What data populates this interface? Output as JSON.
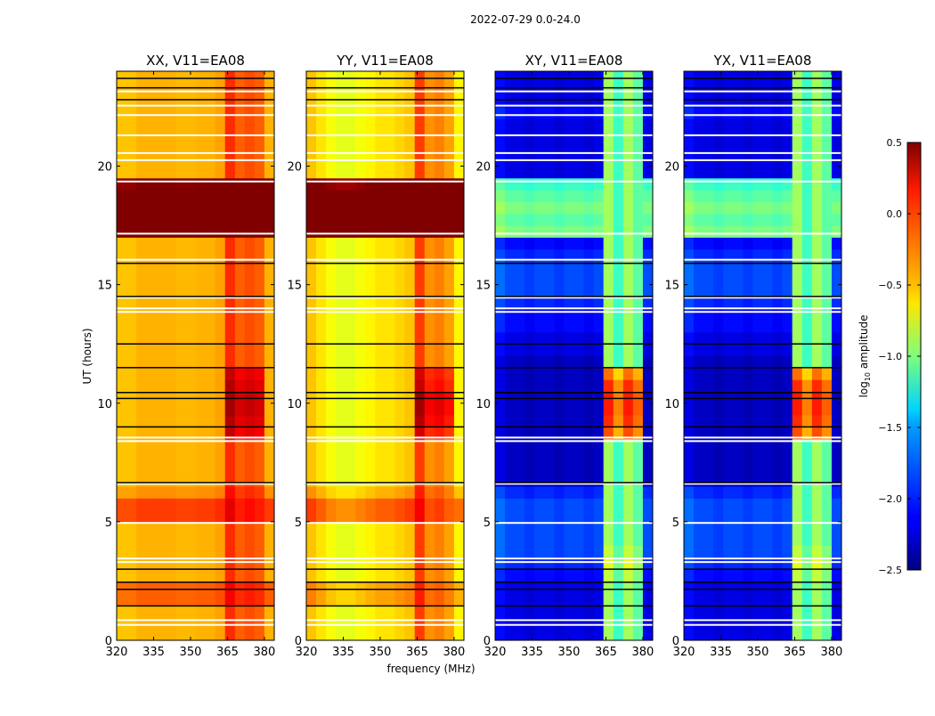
{
  "chart_data": {
    "type": "heatmap",
    "title": "2022-07-29 0.0-24.0",
    "xlabel": "frequency (MHz)",
    "ylabel": "UT (hours)",
    "xlim": [
      320,
      384
    ],
    "ylim": [
      0,
      24
    ],
    "x_ticks": [
      "320",
      "335",
      "350",
      "365",
      "380"
    ],
    "x_tick_values": [
      320,
      335,
      350,
      365,
      380
    ],
    "y_ticks": [
      "0",
      "5",
      "10",
      "15",
      "20"
    ],
    "y_tick_values": [
      0,
      5,
      10,
      15,
      20
    ],
    "freq_bin_edges_start": 320,
    "freq_bin_width_mhz": 4,
    "time_bin_width_hours": 0.5,
    "high_band_bins": [
      11,
      12,
      13,
      14
    ],
    "colorbar": {
      "label_main": "log",
      "label_sub": "10",
      "label_rest": " amplitude",
      "colormap": "jet",
      "range": [
        -2.5,
        0.5
      ],
      "ticks": [
        "0.5",
        "0.0",
        "−0.5",
        "−1.0",
        "−1.5",
        "−2.0",
        "−2.5"
      ],
      "tick_values": [
        0.5,
        0.0,
        -0.5,
        -1.0,
        -1.5,
        -2.0,
        -2.5
      ]
    },
    "flagged_hours_white": [
      0.65,
      0.85,
      3.3,
      3.45,
      4.95,
      6.6,
      8.4,
      8.55,
      13.85,
      14.0,
      14.45,
      16.05,
      17.15,
      19.35,
      20.25,
      20.55,
      21.3,
      22.15,
      22.55,
      23.15
    ],
    "flagged_hours_black": [
      1.45,
      2.15,
      2.45,
      3.0,
      6.65,
      9.0,
      10.2,
      10.45,
      11.5,
      12.5,
      14.5,
      15.9,
      22.8,
      23.3,
      23.7
    ],
    "panels": [
      {
        "title": "XX, V11=EA08",
        "freq_profile": [
          -0.45,
          -0.45,
          -0.4,
          -0.4,
          -0.4,
          -0.4,
          -0.42,
          -0.42,
          -0.4,
          -0.4,
          -0.35,
          0.0,
          -0.15,
          -0.1,
          -0.15,
          -0.4
        ],
        "time_profile_low": [
          0,
          0,
          0,
          0.25,
          0.25,
          0,
          0,
          0,
          0,
          0,
          0.35,
          0.35,
          0.1,
          0,
          0,
          0,
          0,
          0,
          0,
          0,
          0,
          0,
          0,
          0,
          0,
          0,
          0,
          0,
          0,
          0,
          0,
          0,
          0,
          0,
          1.0,
          1.0,
          1.0,
          1.0,
          0.9,
          0,
          0,
          0,
          0,
          0,
          0,
          0,
          0,
          0
        ],
        "time_profile_high": [
          0,
          0,
          0,
          0.15,
          0.15,
          0,
          0,
          0,
          0,
          0,
          0.2,
          0.2,
          0.1,
          0,
          0,
          0,
          0,
          0.3,
          0.35,
          0.4,
          0.4,
          0.35,
          0.3,
          0,
          0,
          0,
          0,
          0,
          0,
          0,
          0,
          0,
          0,
          0,
          1.0,
          1.0,
          1.0,
          1.0,
          0.9,
          0,
          0,
          0,
          0,
          0,
          0,
          0,
          0,
          0
        ]
      },
      {
        "title": "YY, V11=EA08",
        "freq_profile": [
          -0.45,
          -0.55,
          -0.65,
          -0.7,
          -0.7,
          -0.65,
          -0.6,
          -0.55,
          -0.55,
          -0.5,
          -0.45,
          -0.05,
          -0.3,
          -0.25,
          -0.35,
          -0.6
        ],
        "time_profile_low": [
          0,
          0,
          0,
          0.2,
          0.2,
          0,
          0,
          0,
          0,
          0,
          0.4,
          0.4,
          0.15,
          0,
          0,
          0,
          0,
          0,
          0,
          0,
          0,
          0,
          0,
          0,
          0,
          0,
          0,
          0,
          0,
          0,
          0,
          0,
          0,
          0,
          1.2,
          1.2,
          1.2,
          1.2,
          1.1,
          0,
          0,
          0,
          0,
          0,
          0,
          0,
          0,
          0
        ],
        "time_profile_high": [
          0,
          0,
          0,
          0.1,
          0.1,
          0,
          0,
          0,
          0,
          0,
          0.2,
          0.2,
          0.1,
          0,
          0,
          0,
          0,
          0.3,
          0.4,
          0.45,
          0.45,
          0.35,
          0.3,
          0,
          0,
          0,
          0,
          0,
          0,
          0,
          0,
          0,
          0,
          0,
          1.0,
          1.0,
          1.0,
          1.0,
          0.9,
          0,
          0,
          0,
          0,
          0,
          0,
          0,
          0,
          0
        ]
      },
      {
        "title": "XY, V11=EA08",
        "freq_profile": [
          -2.1,
          -2.2,
          -2.2,
          -2.25,
          -2.2,
          -2.2,
          -2.25,
          -2.2,
          -2.2,
          -2.25,
          -2.2,
          -0.9,
          -1.2,
          -0.9,
          -1.1,
          -2.2
        ],
        "time_profile_low": [
          0,
          0,
          0,
          0,
          0,
          0.1,
          0.2,
          0.3,
          0.3,
          0.3,
          0.3,
          0.3,
          0.2,
          -0.1,
          -0.1,
          -0.1,
          -0.1,
          -0.1,
          -0.1,
          -0.1,
          -0.1,
          -0.1,
          -0.1,
          -0.1,
          0,
          0,
          0.1,
          0.1,
          0.2,
          0.3,
          0.3,
          0.3,
          0.2,
          0.1,
          1.2,
          1.1,
          1.2,
          1.1,
          1.0,
          0,
          0,
          0,
          0,
          0,
          0.1,
          0,
          0,
          0
        ],
        "time_profile_high": [
          0,
          0,
          0,
          0,
          0,
          0.1,
          0.2,
          0.1,
          0,
          0,
          0,
          0,
          0,
          0,
          0,
          0,
          0,
          0.8,
          0.9,
          0.95,
          0.95,
          0.9,
          0.7,
          0,
          0,
          0,
          0,
          0,
          0,
          0,
          0,
          0,
          0,
          0,
          0,
          0,
          0,
          0,
          0,
          0,
          0,
          0,
          0,
          0,
          0,
          0,
          0,
          0
        ]
      },
      {
        "title": "YX, V11=EA08",
        "freq_profile": [
          -2.1,
          -2.2,
          -2.2,
          -2.25,
          -2.2,
          -2.2,
          -2.25,
          -2.2,
          -2.2,
          -2.25,
          -2.2,
          -0.9,
          -1.2,
          -0.9,
          -1.1,
          -2.2
        ],
        "time_profile_low": [
          0,
          0,
          0,
          0,
          0,
          0.1,
          0.2,
          0.3,
          0.3,
          0.3,
          0.3,
          0.3,
          0.2,
          -0.1,
          -0.1,
          -0.1,
          -0.1,
          -0.1,
          -0.1,
          -0.1,
          -0.1,
          -0.1,
          -0.1,
          -0.1,
          0,
          0,
          0.1,
          0.1,
          0.2,
          0.3,
          0.3,
          0.3,
          0.2,
          0.1,
          1.2,
          1.1,
          1.2,
          1.1,
          1.0,
          0,
          0,
          0,
          0,
          0,
          0.1,
          0,
          0,
          0
        ],
        "time_profile_high": [
          0,
          0,
          0,
          0,
          0,
          0.1,
          0.2,
          0.1,
          0,
          0,
          0,
          0,
          0,
          0,
          0,
          0,
          0,
          0.8,
          0.9,
          0.95,
          0.95,
          0.9,
          0.7,
          0,
          0,
          0,
          0,
          0,
          0,
          0,
          0,
          0,
          0,
          0,
          0,
          0,
          0,
          0,
          0,
          0,
          0,
          0,
          0,
          0,
          0,
          0,
          0,
          0
        ]
      }
    ]
  }
}
